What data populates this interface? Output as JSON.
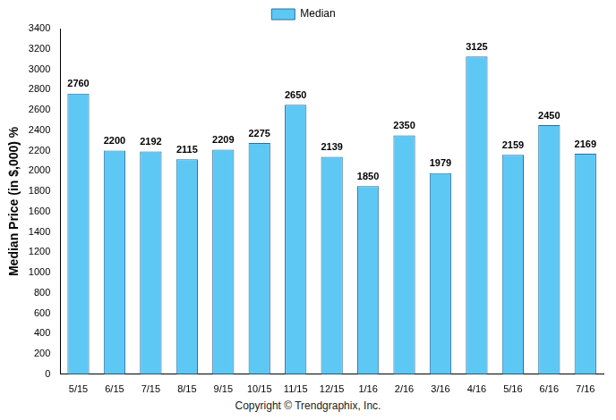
{
  "chart_data": {
    "type": "bar",
    "y_label": "Median Price (in $,000) %",
    "categories": [
      "5/15",
      "6/15",
      "7/15",
      "8/15",
      "9/15",
      "10/15",
      "11/15",
      "12/15",
      "1/16",
      "2/16",
      "3/16",
      "4/16",
      "5/16",
      "6/16",
      "7/16"
    ],
    "series": [
      {
        "name": "Median",
        "color": "#5ec8f5",
        "values": [
          2760,
          2200,
          2192,
          2115,
          2209,
          2275,
          2650,
          2139,
          1850,
          2350,
          1979,
          3125,
          2159,
          2450,
          2169
        ]
      }
    ],
    "ylim": [
      0,
      3400
    ],
    "yticks": [
      0,
      200,
      400,
      600,
      800,
      1000,
      1200,
      1400,
      1600,
      1800,
      2000,
      2200,
      2400,
      2600,
      2800,
      3000,
      3200,
      3400
    ],
    "grid": false,
    "legend": "top",
    "data_labels": true,
    "annotations": [
      "Copyright © Trendgraphix, Inc."
    ]
  }
}
